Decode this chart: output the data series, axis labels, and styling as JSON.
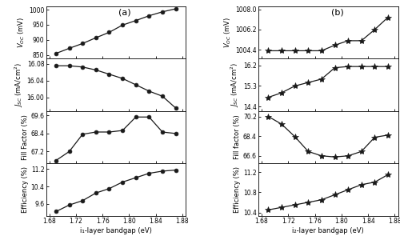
{
  "x_a": [
    1.69,
    1.71,
    1.73,
    1.75,
    1.77,
    1.79,
    1.81,
    1.83,
    1.85,
    1.87
  ],
  "voc_a": [
    855,
    872,
    888,
    907,
    925,
    949,
    964,
    980,
    993,
    1003
  ],
  "jsc_a": [
    16.075,
    16.075,
    16.072,
    16.065,
    16.055,
    16.045,
    16.03,
    16.015,
    16.003,
    15.975
  ],
  "ff_a": [
    66.6,
    67.2,
    68.35,
    68.5,
    68.5,
    68.6,
    69.5,
    69.5,
    68.5,
    68.4
  ],
  "eff_a": [
    9.25,
    9.55,
    9.75,
    10.1,
    10.3,
    10.6,
    10.8,
    11.0,
    11.1,
    11.15
  ],
  "x_b": [
    1.69,
    1.71,
    1.73,
    1.75,
    1.77,
    1.79,
    1.81,
    1.83,
    1.85,
    1.87
  ],
  "voc_b": [
    1004.3,
    1004.3,
    1004.3,
    1004.3,
    1004.3,
    1004.8,
    1005.2,
    1005.2,
    1006.2,
    1007.3
  ],
  "jsc_b": [
    14.8,
    15.0,
    15.3,
    15.45,
    15.6,
    16.1,
    16.15,
    16.15,
    16.15,
    16.15
  ],
  "ff_b": [
    70.2,
    69.5,
    68.35,
    67.0,
    66.6,
    66.5,
    66.6,
    67.0,
    68.3,
    68.5
  ],
  "eff_b": [
    10.45,
    10.5,
    10.55,
    10.6,
    10.65,
    10.75,
    10.85,
    10.95,
    11.0,
    11.15
  ],
  "voc_a_ylim": [
    838,
    1012
  ],
  "voc_a_yticks": [
    850,
    900,
    950,
    1000
  ],
  "jsc_a_ylim": [
    15.968,
    16.092
  ],
  "jsc_a_yticks": [
    16.0,
    16.04,
    16.08
  ],
  "ff_a_ylim": [
    66.4,
    69.9
  ],
  "ff_a_yticks": [
    67.2,
    68.4,
    69.6
  ],
  "eff_a_ylim": [
    9.05,
    11.45
  ],
  "eff_a_yticks": [
    9.6,
    10.4,
    11.2
  ],
  "voc_b_ylim": [
    1003.6,
    1008.3
  ],
  "voc_b_yticks": [
    1004.4,
    1006.2,
    1008.0
  ],
  "jsc_b_ylim": [
    14.2,
    16.5
  ],
  "jsc_b_yticks": [
    14.4,
    15.3,
    16.2
  ],
  "ff_b_ylim": [
    65.9,
    70.7
  ],
  "ff_b_yticks": [
    66.6,
    68.4,
    70.2
  ],
  "eff_b_ylim": [
    10.33,
    11.37
  ],
  "eff_b_yticks": [
    10.4,
    10.8,
    11.2
  ],
  "xlabel_a": "i₁-layer bandgap (eV)",
  "xlabel_b": "i₂-layer bandgap (eV)",
  "ylabel_voc": "$V_{OC}$ (mV)",
  "ylabel_jsc": "$J_{SC}$ (mA/cm$^2$)",
  "ylabel_ff_a": "Fill Factor (%)",
  "ylabel_ff_b": "Fill factor (%)",
  "ylabel_eff": "Efficiency (%)",
  "label_a": "(a)",
  "label_b": "(b)",
  "line_color": "#1a1a1a",
  "marker_style_a": "o",
  "marker_style_b": "*",
  "marker_size_a": 3.5,
  "marker_size_b": 6,
  "linewidth": 0.9,
  "xlim": [
    1.675,
    1.885
  ],
  "xticks": [
    1.68,
    1.72,
    1.76,
    1.8,
    1.84,
    1.88
  ],
  "xtick_labels": [
    "1.68",
    "1.72",
    "1.76",
    "1.80",
    "1.84",
    "1.88"
  ]
}
